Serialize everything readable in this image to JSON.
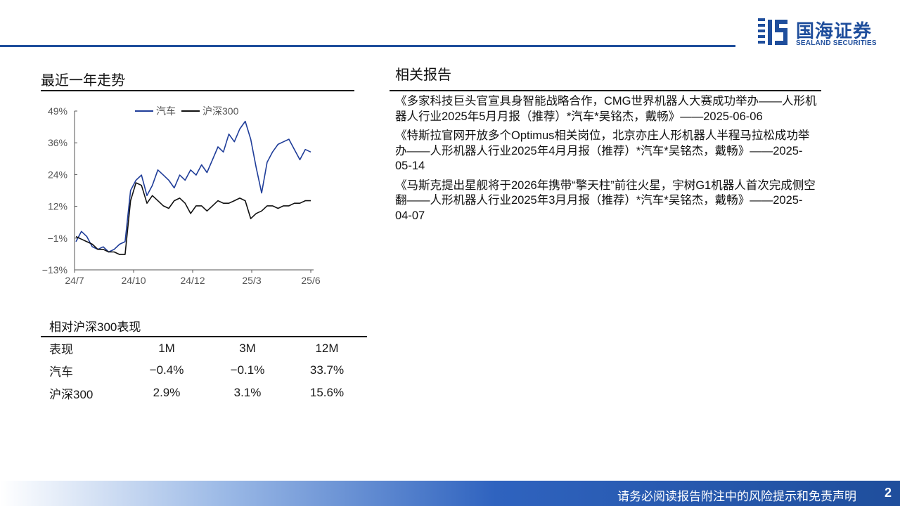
{
  "brand": {
    "name_cn": "国海证券",
    "name_en": "SEALAND SECURITIES",
    "color": "#1f4e9c",
    "icon": "sealand-logo-icon"
  },
  "trend": {
    "title": "最近一年走势"
  },
  "chart_data": {
    "type": "line",
    "x_ticks": [
      "24/7",
      "24/10",
      "24/12",
      "25/3",
      "25/6"
    ],
    "y_ticks": [
      "49%",
      "36%",
      "24%",
      "12%",
      "−1%",
      "−13%"
    ],
    "ylim": [
      -13,
      49
    ],
    "legend_position": "top-center",
    "grid": false,
    "series": [
      {
        "name": "汽车",
        "color": "#1f3d99",
        "values": [
          -2,
          2,
          0,
          -4,
          -5,
          -4,
          -6,
          -5,
          -3,
          -2,
          18,
          22,
          24,
          16,
          20,
          26,
          24,
          22,
          19,
          24,
          22,
          26,
          24,
          28,
          25,
          30,
          35,
          33,
          40,
          37,
          42,
          45,
          38,
          27,
          17,
          29,
          33,
          36,
          37,
          38,
          34,
          30,
          34,
          33
        ]
      },
      {
        "name": "沪深300",
        "color": "#111111",
        "values": [
          0,
          -1,
          -2,
          -3,
          -5,
          -5,
          -6,
          -6,
          -7,
          -7,
          14,
          21,
          20,
          13,
          16,
          14,
          12,
          11,
          14,
          15,
          13,
          9,
          12,
          12,
          10,
          12,
          14,
          13,
          13,
          14,
          15,
          14,
          7,
          9,
          10,
          12,
          12,
          11,
          12,
          12,
          13,
          13,
          14,
          14
        ]
      }
    ]
  },
  "performance": {
    "title": "相对沪深300表现",
    "columns": [
      "表现",
      "1M",
      "3M",
      "12M"
    ],
    "rows": [
      [
        "汽车",
        "−0.4%",
        "−0.1%",
        "33.7%"
      ],
      [
        "沪深300",
        "2.9%",
        "3.1%",
        "15.6%"
      ]
    ]
  },
  "related": {
    "title": "相关报告",
    "items": [
      "《多家科技巨头官宣具身智能战略合作，CMG世界机器人大赛成功举办——人形机器人行业2025年5月月报（推荐）*汽车*吴铭杰，戴畅》——2025-06-06",
      "《特斯拉官网开放多个Optimus相关岗位，北京亦庄人形机器人半程马拉松成功举办——人形机器人行业2025年4月月报（推荐）*汽车*吴铭杰，戴畅》——2025-05-14",
      "《马斯克提出星舰将于2026年携带“擎天柱”前往火星，宇树G1机器人首次完成侧空翻——人形机器人行业2025年3月月报（推荐）*汽车*吴铭杰，戴畅》——2025-04-07"
    ]
  },
  "footer": {
    "disclaimer": "请务必阅读报告附注中的风险提示和免责声明",
    "page": "2"
  }
}
